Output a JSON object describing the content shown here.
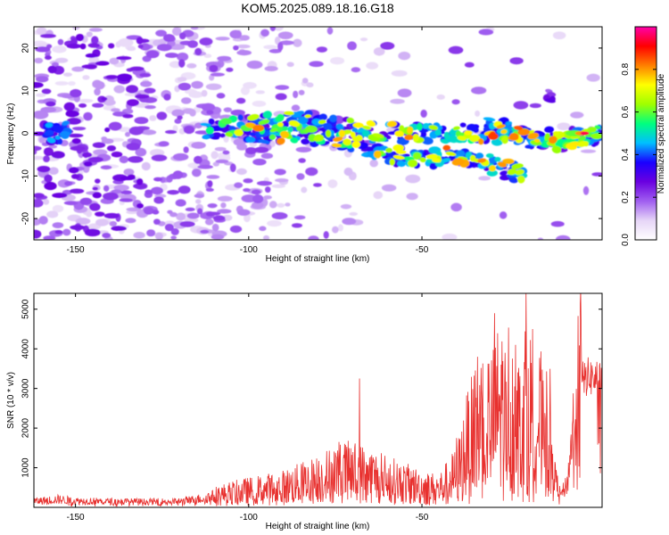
{
  "title": "KOM5.2025.089.18.16.G18",
  "colors": {
    "snr_line": "#e8312f",
    "frame": "#000000"
  },
  "chart_data": [
    {
      "type": "heatmap",
      "xlabel": "Height of straight line (km)",
      "ylabel": "Frequency (Hz)",
      "xlim": [
        -162,
        2
      ],
      "ylim": [
        -25,
        25
      ],
      "xticks": [
        -150,
        -100,
        -50
      ],
      "yticks": [
        -20,
        -10,
        0,
        10,
        20
      ],
      "colorbar": {
        "label": "Normalized spectral amplitude",
        "range": [
          0,
          1
        ],
        "ticks": [
          0.0,
          0.2,
          0.4,
          0.6,
          0.8
        ],
        "tick_labels": [
          "0.0",
          "0.2",
          "0.4",
          "0.6",
          "0.8"
        ],
        "colormap": [
          "#ffffff",
          "#e6d5f7",
          "#a05ef0",
          "#6a00e0",
          "#1a00ff",
          "#00bfff",
          "#00ff7f",
          "#9fff00",
          "#ffff00",
          "#ff7f00",
          "#ff0000",
          "#ff00aa"
        ]
      },
      "ridges": [
        {
          "name": "",
          "points": [
            [
              -162,
              2
            ],
            [
              -140,
              1
            ],
            [
              -120,
              0
            ],
            [
              -100,
              2
            ],
            [
              -85,
              3
            ],
            [
              -70,
              1
            ],
            [
              -55,
              0
            ],
            [
              -45,
              0
            ],
            [
              -30,
              0
            ],
            [
              -15,
              -1
            ],
            [
              -5,
              -1
            ],
            [
              2,
              0
            ]
          ]
        },
        {
          "name": "",
          "points": [
            [
              -100,
              0
            ],
            [
              -85,
              0
            ],
            [
              -70,
              -2
            ],
            [
              -60,
              -5
            ],
            [
              -50,
              -6
            ],
            [
              -42,
              -5
            ],
            [
              -35,
              -6
            ],
            [
              -20,
              -10
            ]
          ]
        },
        {
          "name": "",
          "points": [
            [
              -30,
              2
            ],
            [
              -20,
              -1
            ],
            [
              -12,
              -3
            ],
            [
              -5,
              -1
            ],
            [
              2,
              0
            ]
          ]
        }
      ],
      "peak": {
        "x": -3,
        "y": 0,
        "value": 0.95
      }
    },
    {
      "type": "line",
      "xlabel": "Height of straight line (km)",
      "ylabel": "SNR (10 * v/v)",
      "xlim": [
        -162,
        2
      ],
      "ylim": [
        0,
        5400
      ],
      "xticks": [
        -150,
        -100,
        -50
      ],
      "yticks": [
        1000,
        2000,
        3000,
        4000,
        5000
      ],
      "series": [
        {
          "x": [
            -162,
            -155,
            -150,
            -140,
            -130,
            -120,
            -115,
            -110,
            -105,
            -100,
            -95,
            -90,
            -85,
            -80,
            -75,
            -70,
            -65,
            -60,
            -55,
            -50,
            -45,
            -40,
            -37,
            -35,
            -32,
            -30,
            -28,
            -25,
            -22,
            -20,
            -18,
            -15,
            -13,
            -12,
            -10,
            -8,
            -6,
            -4,
            -2,
            0,
            2
          ],
          "y": [
            150,
            200,
            160,
            150,
            140,
            150,
            200,
            280,
            350,
            400,
            450,
            500,
            600,
            700,
            850,
            900,
            800,
            700,
            600,
            500,
            450,
            800,
            1500,
            1800,
            2200,
            2000,
            2400,
            2500,
            2000,
            2600,
            2200,
            2000,
            1800,
            900,
            300,
            600,
            2400,
            3200,
            3300,
            3250,
            3300
          ],
          "peaks": [
            [
              -74,
              1650
            ],
            [
              -68,
              3250
            ],
            [
              -40,
              1750
            ],
            [
              -34,
              3800
            ],
            [
              -29,
              4900
            ],
            [
              -26,
              3900
            ],
            [
              -23,
              4100
            ],
            [
              -20,
              5400
            ],
            [
              -18,
              4500
            ],
            [
              -15,
              3200
            ]
          ]
        }
      ]
    }
  ]
}
